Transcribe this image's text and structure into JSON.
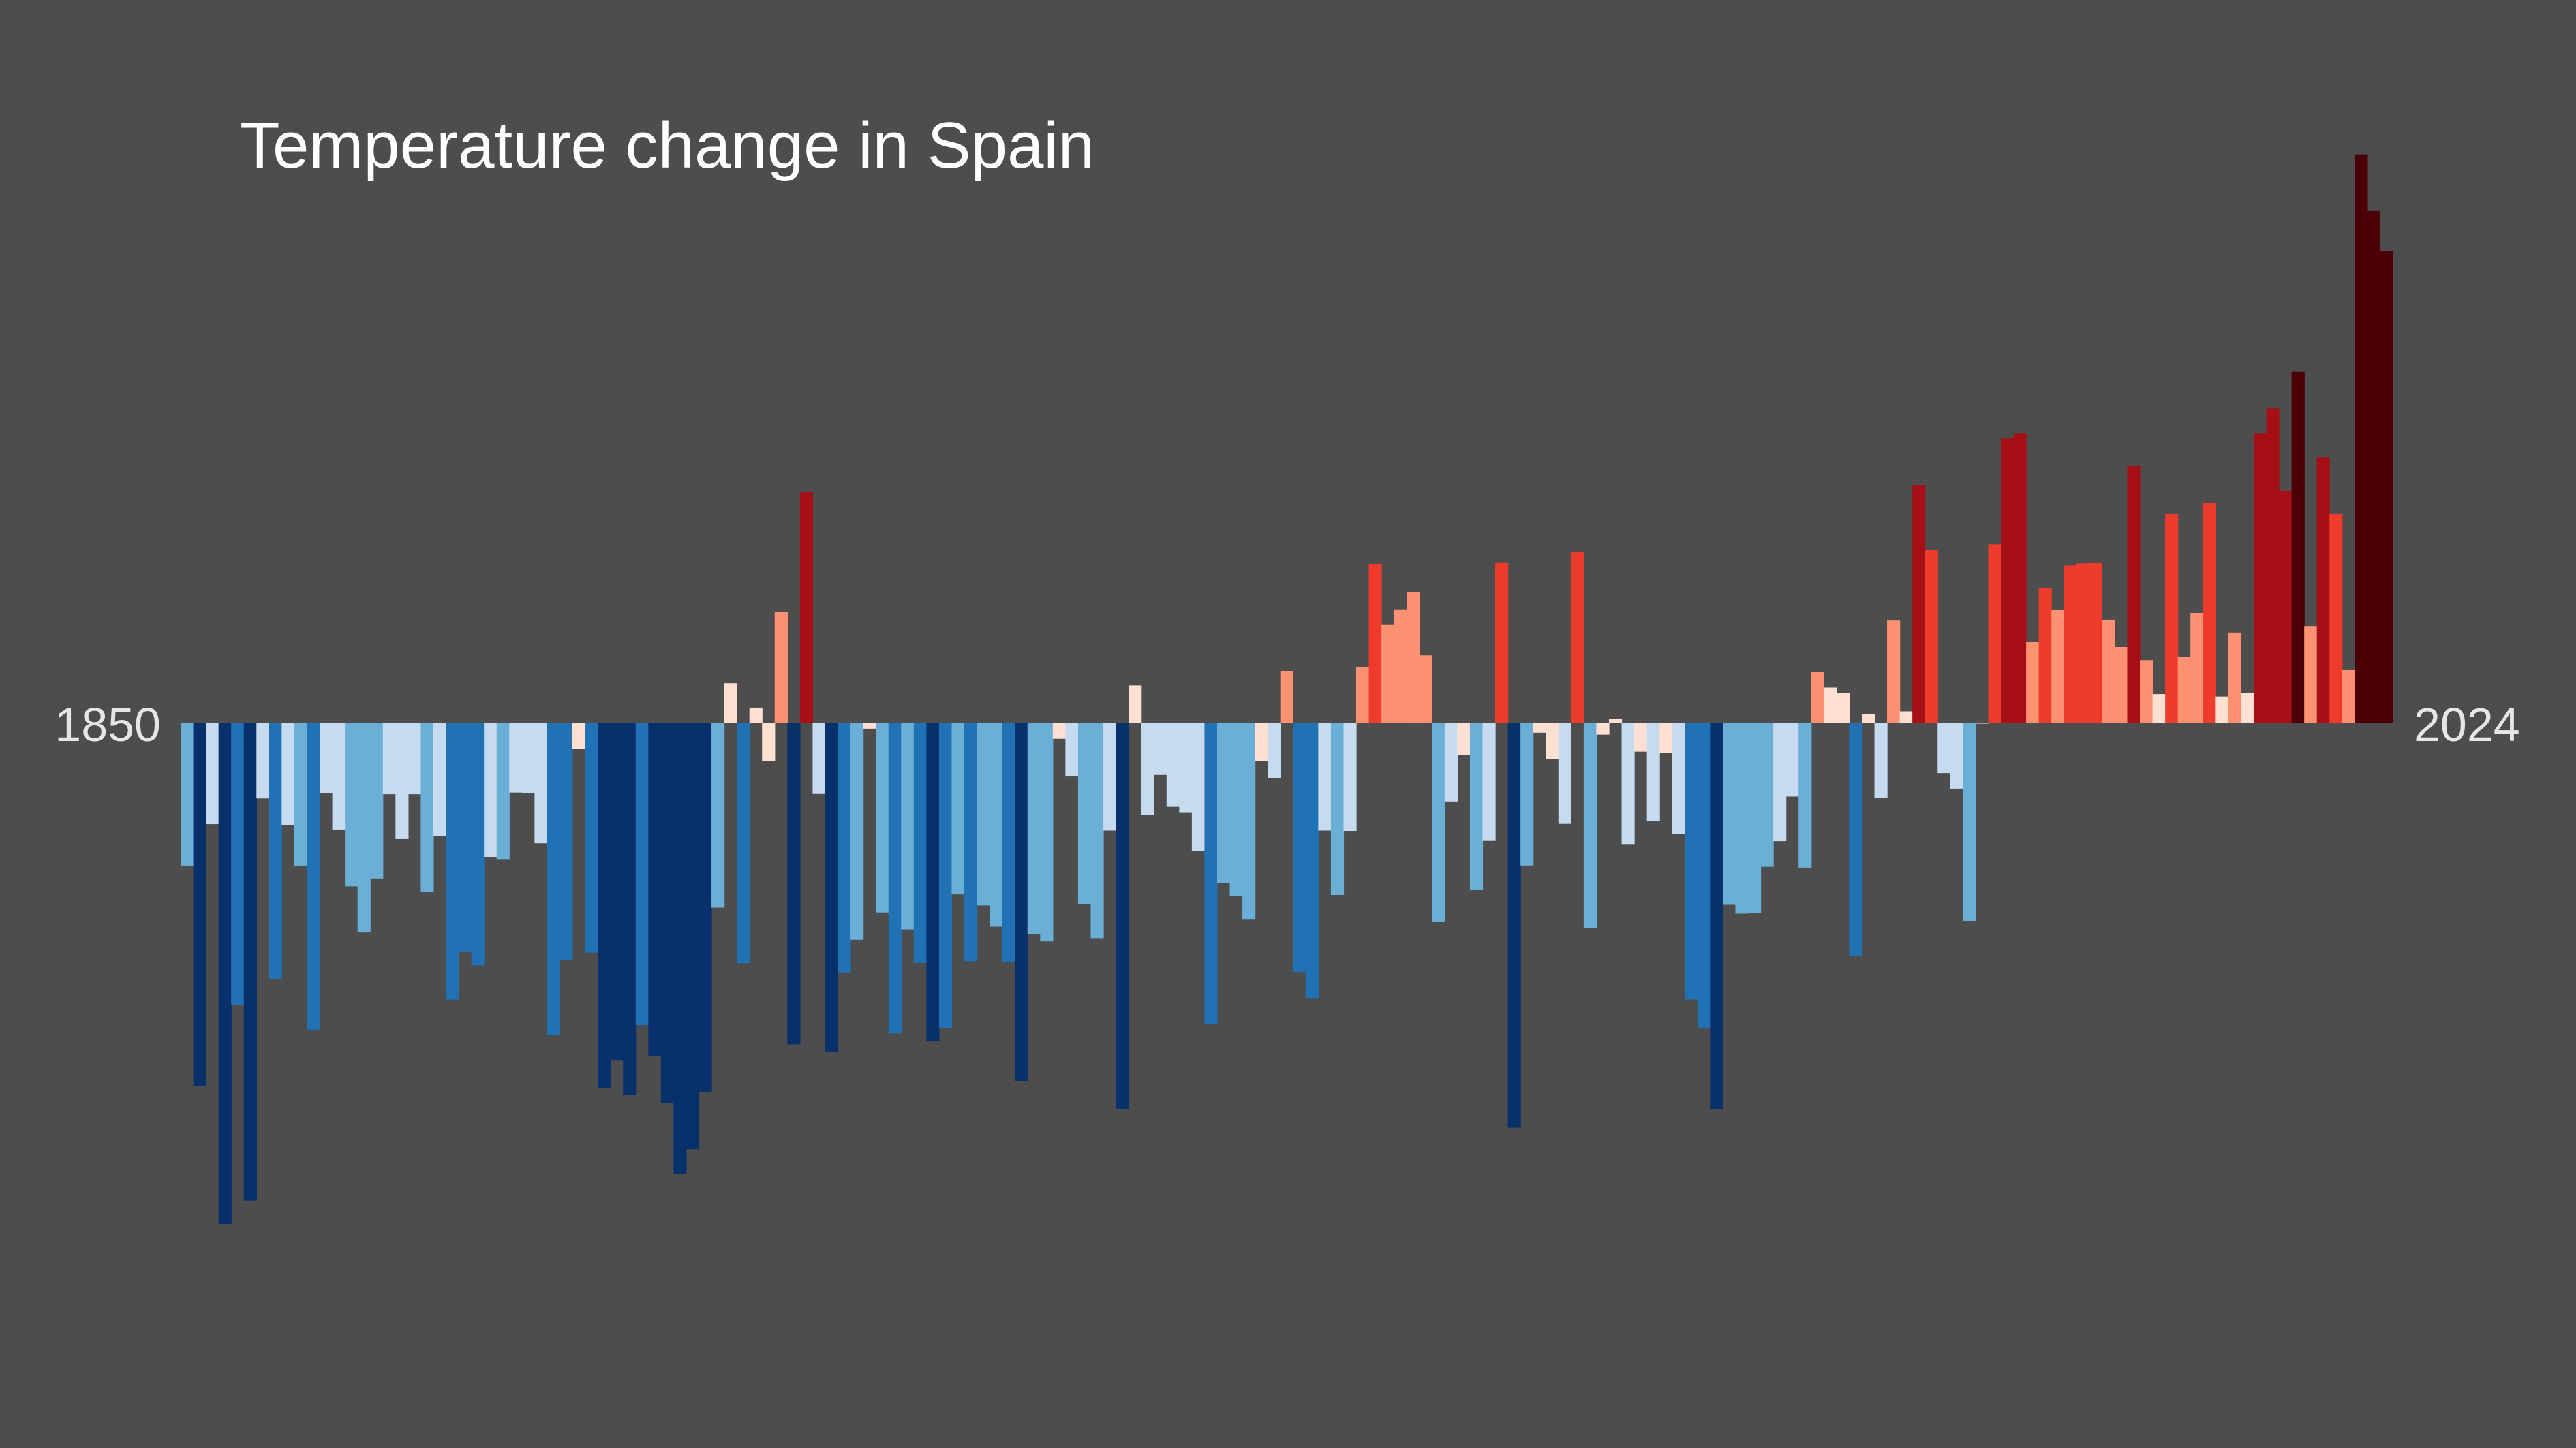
{
  "chart_data": {
    "type": "bar",
    "title": "Temperature change in Spain",
    "start_year": "1850",
    "end_year": "2024",
    "xlabel": "",
    "ylabel": "",
    "grid": false,
    "legend": "none",
    "ylim": [
      -0.42,
      0.52
    ],
    "values": [
      -0.1194,
      -0.3042,
      -0.0846,
      -0.42,
      -0.2364,
      -0.4004,
      -0.063,
      -0.2146,
      -0.0857,
      -0.1194,
      -0.257,
      -0.0586,
      -0.0891,
      -0.1368,
      -0.1755,
      -0.1302,
      -0.0595,
      -0.0971,
      -0.0595,
      -0.1417,
      -0.0944,
      -0.2318,
      -0.1919,
      -0.2031,
      -0.1124,
      -0.1139,
      -0.0581,
      -0.0587,
      -0.1007,
      -0.2614,
      -0.1983,
      -0.0217,
      -0.1925,
      -0.3058,
      -0.283,
      -0.3117,
      -0.2532,
      -0.2792,
      -0.3183,
      -0.3781,
      -0.3573,
      -0.3091,
      -0.1546,
      0.0336,
      -0.2013,
      0.0132,
      -0.032,
      0.0934,
      -0.2694,
      0.1936,
      -0.0593,
      -0.2758,
      -0.209,
      -0.1816,
      -0.0045,
      -0.1587,
      -0.2602,
      -0.1729,
      -0.2011,
      -0.2669,
      -0.256,
      -0.1435,
      -0.1996,
      -0.1528,
      -0.1706,
      -0.2002,
      -0.3,
      -0.1769,
      -0.183,
      -0.013,
      -0.0446,
      -0.1514,
      -0.1802,
      -0.09,
      -0.3235,
      0.0318,
      -0.077,
      -0.0433,
      -0.0701,
      -0.0746,
      -0.107,
      -0.252,
      -0.1337,
      -0.1448,
      -0.1647,
      -0.0316,
      -0.046,
      0.044,
      -0.2087,
      -0.231,
      -0.09,
      -0.144,
      -0.0903,
      0.047,
      0.1337,
      0.083,
      0.0956,
      0.1103,
      0.057,
      -0.1664,
      -0.0656,
      -0.0268,
      -0.14,
      -0.0987,
      0.135,
      -0.3392,
      -0.1193,
      -0.0079,
      -0.03,
      -0.0844,
      0.1438,
      -0.1716,
      -0.0095,
      0.004,
      -0.1013,
      -0.0238,
      -0.0823,
      -0.0246,
      -0.0926,
      -0.2317,
      -0.2553,
      -0.3235,
      -0.1523,
      -0.1597,
      -0.1591,
      -0.1204,
      -0.0989,
      -0.0614,
      -0.1211,
      0.043,
      0.03,
      0.0255,
      -0.1951,
      0.0077,
      -0.0626,
      0.0862,
      0.01,
      0.2,
      0.1454,
      -0.0418,
      -0.0548,
      -0.1657,
      0.0,
      0.1501,
      0.2392,
      0.2432,
      0.0685,
      0.1136,
      0.0952,
      0.1323,
      0.1341,
      0.1348,
      0.0869,
      0.064,
      0.2161,
      0.053,
      0.0245,
      0.1758,
      0.056,
      0.0926,
      0.1848,
      0.0225,
      0.0761,
      0.0257,
      0.2432,
      0.2644,
      0.195,
      0.295,
      0.0816,
      0.2232,
      0.1761,
      0.045,
      0.4773,
      0.4298,
      0.3961
    ],
    "colors": [
      "#08306b",
      "#2171b5",
      "#6baed6",
      "#c6dbef",
      "#fee0d2",
      "#fc9272",
      "#ef3b2c",
      "#a50f15",
      "#4a0006"
    ]
  }
}
